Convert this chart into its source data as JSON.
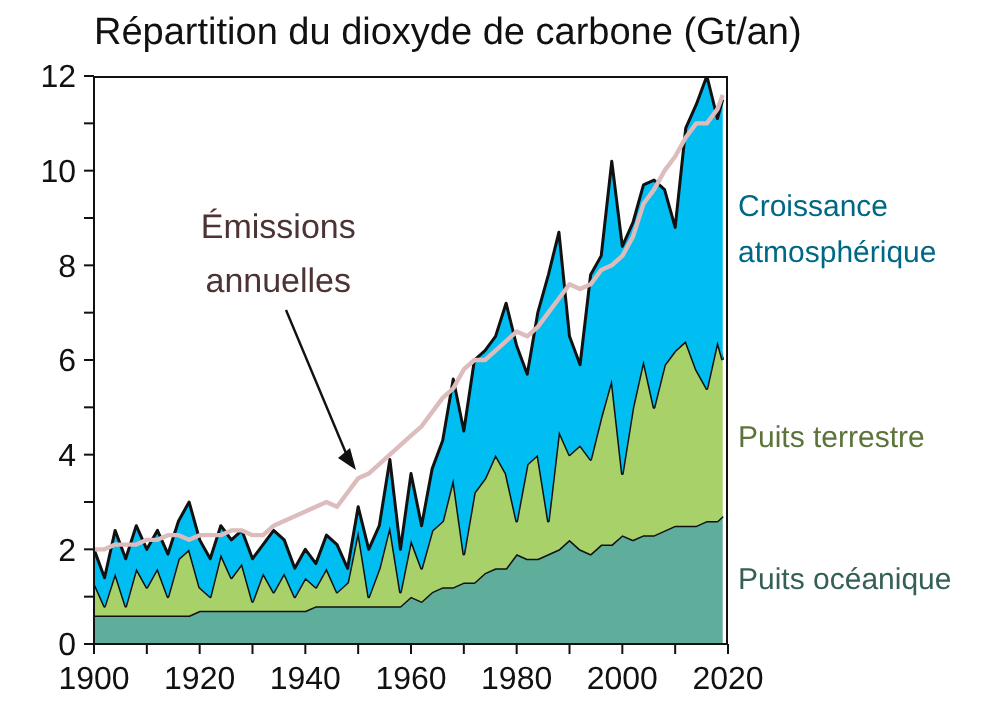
{
  "chart_data": {
    "type": "area",
    "stacked": true,
    "title": "Répartition du dioxyde de carbone (Gt/an)",
    "x": [
      1900,
      1902,
      1904,
      1906,
      1908,
      1910,
      1912,
      1914,
      1916,
      1918,
      1920,
      1922,
      1924,
      1926,
      1928,
      1930,
      1932,
      1934,
      1936,
      1938,
      1940,
      1942,
      1944,
      1946,
      1948,
      1950,
      1952,
      1954,
      1956,
      1958,
      1960,
      1962,
      1964,
      1966,
      1968,
      1970,
      1972,
      1974,
      1976,
      1978,
      1980,
      1982,
      1984,
      1986,
      1988,
      1990,
      1992,
      1994,
      1996,
      1998,
      2000,
      2002,
      2004,
      2006,
      2008,
      2010,
      2012,
      2014,
      2016,
      2018,
      2019
    ],
    "series": [
      {
        "name": "Puits océanique",
        "color": "#5fae9c",
        "values": [
          0.6,
          0.6,
          0.6,
          0.6,
          0.6,
          0.6,
          0.6,
          0.6,
          0.6,
          0.6,
          0.7,
          0.7,
          0.7,
          0.7,
          0.7,
          0.7,
          0.7,
          0.7,
          0.7,
          0.7,
          0.7,
          0.8,
          0.8,
          0.8,
          0.8,
          0.8,
          0.8,
          0.8,
          0.8,
          0.8,
          1.0,
          0.9,
          1.1,
          1.2,
          1.2,
          1.3,
          1.3,
          1.5,
          1.6,
          1.6,
          1.9,
          1.8,
          1.8,
          1.9,
          2.0,
          2.2,
          2.0,
          1.9,
          2.1,
          2.1,
          2.3,
          2.2,
          2.3,
          2.3,
          2.4,
          2.5,
          2.5,
          2.5,
          2.6,
          2.6,
          2.7
        ]
      },
      {
        "name": "Puits terrestre",
        "color": "#a8d16a",
        "values": [
          0.7,
          0.2,
          0.9,
          0.2,
          1.0,
          0.6,
          1.0,
          0.4,
          1.2,
          1.4,
          0.5,
          0.3,
          1.2,
          0.7,
          1.0,
          0.2,
          0.8,
          0.4,
          0.8,
          0.3,
          0.7,
          0.4,
          0.8,
          0.3,
          0.5,
          1.6,
          0.2,
          0.8,
          1.7,
          0.3,
          1.2,
          0.7,
          1.3,
          1.4,
          2.3,
          0.6,
          1.9,
          2.0,
          2.4,
          2.0,
          0.7,
          2.0,
          2.2,
          0.7,
          2.5,
          1.8,
          2.2,
          2.0,
          2.7,
          3.5,
          1.3,
          2.8,
          3.7,
          2.7,
          3.5,
          3.7,
          3.9,
          3.3,
          2.8,
          3.8,
          3.3
        ]
      },
      {
        "name": "Croissance atmosphérique",
        "color": "#00bdf2",
        "values": [
          0.7,
          0.6,
          0.9,
          1.0,
          0.9,
          0.8,
          0.8,
          0.9,
          0.8,
          1.0,
          1.0,
          0.8,
          0.6,
          0.8,
          0.7,
          0.9,
          0.6,
          1.3,
          0.7,
          0.6,
          0.6,
          0.5,
          0.7,
          1.0,
          0.3,
          0.5,
          1.0,
          0.9,
          1.4,
          0.9,
          1.4,
          0.9,
          1.3,
          1.7,
          2.1,
          2.6,
          2.8,
          2.7,
          2.5,
          3.6,
          3.7,
          1.9,
          3.0,
          5.2,
          4.2,
          2.5,
          1.7,
          3.9,
          3.4,
          4.6,
          4.8,
          3.9,
          3.7,
          4.8,
          3.7,
          2.6,
          4.5,
          5.6,
          6.6,
          4.7,
          5.5
        ]
      },
      {
        "type": "line",
        "color": "#dcbcbc",
        "values": [
          2.0,
          2.0,
          2.1,
          2.1,
          2.1,
          2.2,
          2.2,
          2.3,
          2.3,
          2.2,
          2.3,
          2.3,
          2.3,
          2.4,
          2.4,
          2.3,
          2.3,
          2.5,
          2.6,
          2.7,
          2.8,
          2.9,
          3.0,
          2.9,
          3.2,
          3.5,
          3.6,
          3.8,
          4.0,
          4.2,
          4.4,
          4.6,
          4.9,
          5.2,
          5.4,
          5.8,
          6.0,
          6.0,
          6.2,
          6.4,
          6.6,
          6.5,
          6.7,
          7.0,
          7.3,
          7.6,
          7.5,
          7.6,
          7.9,
          8.0,
          8.2,
          8.6,
          9.3,
          9.6,
          10.0,
          10.3,
          10.7,
          11.0,
          11.0,
          11.3,
          11.6
        ]
      }
    ],
    "annotations": [
      "Émissions annuelles"
    ],
    "xlim": [
      1900,
      2020
    ],
    "xticks": [
      1900,
      {
        "value": 1910,
        "label": null
      },
      1920,
      {
        "value": 1930,
        "label": null
      },
      1940,
      {
        "value": 1950,
        "label": null
      },
      1960,
      {
        "value": 1970,
        "label": null
      },
      1980,
      {
        "value": 1990,
        "label": null
      },
      2000,
      {
        "value": 2010,
        "label": null
      },
      2020
    ],
    "ylim": [
      0,
      12
    ],
    "yticks": [
      0,
      {
        "value": 1,
        "label": null
      },
      2,
      {
        "value": 3,
        "label": null
      },
      4,
      {
        "value": 5,
        "label": null
      },
      6,
      {
        "value": 7,
        "label": null
      },
      8,
      {
        "value": 9,
        "label": null
      },
      10,
      {
        "value": 11,
        "label": null
      },
      12
    ],
    "grid": false,
    "legend": false,
    "marker": "none",
    "line_style": "solid"
  }
}
